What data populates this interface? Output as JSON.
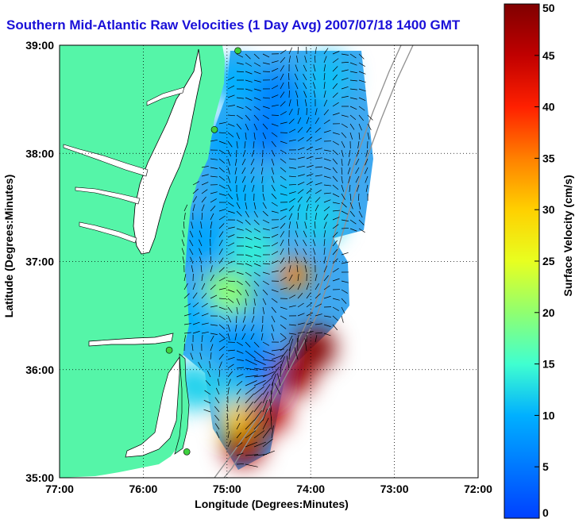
{
  "title": "Southern Mid-Atlantic Raw Velocities (1 Day Avg) 2007/07/18 1400 GMT",
  "xlabel": "Longitude (Degrees:Minutes)",
  "ylabel": "Latitude (Degrees:Minutes)",
  "xticks": [
    "77:00",
    "76:00",
    "75:00",
    "74:00",
    "73:00",
    "72:00"
  ],
  "yticks": [
    "39:00",
    "38:00",
    "37:00",
    "36:00",
    "35:00"
  ],
  "colorbar": {
    "label": "Surface Velocity (cm/s)",
    "ticks": [
      "0",
      "5",
      "10",
      "15",
      "20",
      "25",
      "30",
      "35",
      "40",
      "45",
      "50"
    ],
    "min": 0,
    "max": 50
  },
  "colors": {
    "land": "#55f5a8",
    "water": "#ffffff",
    "title": "#1a10d8",
    "grid": "#000000",
    "isobath": "#909090",
    "station": "#3fd13f"
  },
  "map_extent": {
    "lon": [
      -77,
      -72
    ],
    "lat": [
      35,
      39
    ]
  },
  "velocity_field": [
    {
      "lon": -74.9,
      "lat": 38.65,
      "speed": 10
    },
    {
      "lon": -74.4,
      "lat": 38.55,
      "speed": 6
    },
    {
      "lon": -74.5,
      "lat": 38.2,
      "speed": 5
    },
    {
      "lon": -74.1,
      "lat": 38.3,
      "speed": 8
    },
    {
      "lon": -73.8,
      "lat": 38.7,
      "speed": 11
    },
    {
      "lon": -75.0,
      "lat": 38.1,
      "speed": 9
    },
    {
      "lon": -74.9,
      "lat": 37.6,
      "speed": 10
    },
    {
      "lon": -74.3,
      "lat": 37.6,
      "speed": 11
    },
    {
      "lon": -73.9,
      "lat": 37.4,
      "speed": 12
    },
    {
      "lon": -75.3,
      "lat": 37.2,
      "speed": 9
    },
    {
      "lon": -74.7,
      "lat": 37.1,
      "speed": 14
    },
    {
      "lon": -74.2,
      "lat": 36.88,
      "speed": 35
    },
    {
      "lon": -75.0,
      "lat": 36.7,
      "speed": 20
    },
    {
      "lon": -74.9,
      "lat": 36.3,
      "speed": 8
    },
    {
      "lon": -75.4,
      "lat": 36.5,
      "speed": 10
    },
    {
      "lon": -74.6,
      "lat": 36.0,
      "speed": 6
    },
    {
      "lon": -74.9,
      "lat": 35.7,
      "speed": 12
    },
    {
      "lon": -74.2,
      "lat": 35.95,
      "speed": 48
    },
    {
      "lon": -73.95,
      "lat": 36.2,
      "speed": 50
    },
    {
      "lon": -74.5,
      "lat": 35.6,
      "speed": 46
    },
    {
      "lon": -74.8,
      "lat": 35.3,
      "speed": 47
    },
    {
      "lon": -74.9,
      "lat": 35.55,
      "speed": 30
    },
    {
      "lon": -75.4,
      "lat": 35.85,
      "speed": 12
    }
  ],
  "stations": [
    {
      "lon": -74.87,
      "lat": 38.95
    },
    {
      "lon": -75.15,
      "lat": 38.22
    },
    {
      "lon": -75.69,
      "lat": 36.18
    },
    {
      "lon": -75.48,
      "lat": 35.24
    }
  ]
}
